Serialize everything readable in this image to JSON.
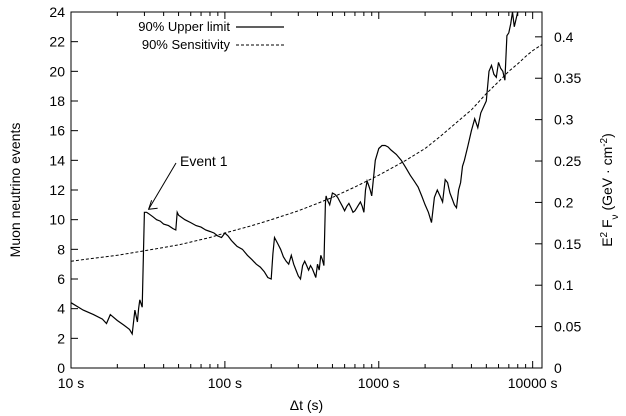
{
  "chart_data": {
    "type": "line",
    "xlabel": "Δt (s)",
    "ylabel_left": "Muon neutrino events",
    "ylabel_right": {
      "base": "E",
      "sup": "2",
      "mid": " F",
      "sub": "ν",
      "unit_open": " (GeV · cm",
      "unit_sup": "-2",
      "unit_close": ")"
    },
    "x_scale": "log",
    "xlim": [
      10,
      11500
    ],
    "ylim_left": [
      0,
      24
    ],
    "ylim_right": [
      0,
      0.43
    ],
    "x_ticks": [
      {
        "value": 10,
        "label": "10 s"
      },
      {
        "value": 100,
        "label": "100 s"
      },
      {
        "value": 1000,
        "label": "1000 s"
      },
      {
        "value": 10000,
        "label": "10000 s"
      }
    ],
    "y_ticks_left": [
      {
        "value": 0,
        "label": "0"
      },
      {
        "value": 2,
        "label": "2"
      },
      {
        "value": 4,
        "label": "4"
      },
      {
        "value": 6,
        "label": "6"
      },
      {
        "value": 8,
        "label": "8"
      },
      {
        "value": 10,
        "label": "10"
      },
      {
        "value": 12,
        "label": "12"
      },
      {
        "value": 14,
        "label": "14"
      },
      {
        "value": 16,
        "label": "16"
      },
      {
        "value": 18,
        "label": "18"
      },
      {
        "value": 20,
        "label": "20"
      },
      {
        "value": 22,
        "label": "22"
      },
      {
        "value": 24,
        "label": "24"
      }
    ],
    "y_ticks_right": [
      {
        "value": 0,
        "label": "0"
      },
      {
        "value": 0.05,
        "label": "0.05"
      },
      {
        "value": 0.1,
        "label": "0.1"
      },
      {
        "value": 0.15,
        "label": "0.15"
      },
      {
        "value": 0.2,
        "label": "0.2"
      },
      {
        "value": 0.25,
        "label": "0.25"
      },
      {
        "value": 0.3,
        "label": "0.3"
      },
      {
        "value": 0.35,
        "label": "0.35"
      },
      {
        "value": 0.4,
        "label": "0.4"
      }
    ],
    "legend_position": "top-left",
    "series": [
      {
        "name": "90% Upper limit",
        "style": "solid",
        "x": [
          10,
          12,
          14,
          16,
          17,
          18,
          20,
          22,
          24,
          25,
          26,
          27,
          27.5,
          28,
          29,
          30,
          31,
          32,
          34,
          36,
          38,
          40,
          43,
          46,
          48,
          49,
          50,
          55,
          60,
          65,
          70,
          75,
          80,
          85,
          90,
          95,
          100,
          105,
          110,
          115,
          120,
          130,
          140,
          150,
          160,
          170,
          180,
          190,
          200,
          205,
          210,
          220,
          230,
          240,
          250,
          260,
          270,
          280,
          290,
          300,
          310,
          320,
          330,
          340,
          350,
          360,
          370,
          380,
          390,
          400,
          410,
          420,
          430,
          440,
          450,
          455,
          460,
          470,
          480,
          500,
          520,
          540,
          560,
          580,
          600,
          620,
          640,
          660,
          680,
          700,
          720,
          740,
          760,
          780,
          800,
          820,
          840,
          860,
          880,
          900,
          950,
          1000,
          1050,
          1100,
          1150,
          1200,
          1300,
          1400,
          1500,
          1600,
          1700,
          1800,
          1900,
          2000,
          2100,
          2200,
          2300,
          2400,
          2500,
          2600,
          2700,
          2800,
          2900,
          3000,
          3100,
          3200,
          3300,
          3400,
          3500,
          3600,
          3800,
          4000,
          4200,
          4400,
          4600,
          4800,
          5000,
          5200,
          5400,
          5600,
          5800,
          6000,
          6200,
          6400,
          6600,
          6800,
          7000,
          7200,
          7400,
          7600,
          8000
        ],
        "y": [
          4.4,
          3.9,
          3.6,
          3.3,
          3.0,
          3.6,
          3.2,
          2.9,
          2.6,
          2.3,
          3.9,
          3.1,
          4.0,
          4.6,
          4.1,
          10.5,
          10.5,
          10.4,
          10.2,
          10.0,
          9.9,
          9.7,
          9.6,
          9.4,
          9.3,
          10.5,
          10.3,
          10.0,
          9.8,
          9.6,
          9.5,
          9.3,
          9.2,
          9.1,
          8.9,
          8.8,
          9.1,
          8.9,
          8.6,
          8.4,
          8.2,
          8.0,
          7.6,
          7.3,
          7.0,
          6.8,
          6.5,
          6.1,
          6.0,
          7.7,
          8.8,
          8.4,
          8.0,
          7.5,
          7.2,
          7.0,
          7.6,
          7.0,
          6.6,
          6.2,
          6.0,
          6.9,
          7.2,
          6.9,
          6.6,
          6.9,
          6.7,
          6.4,
          6.1,
          7.0,
          6.6,
          7.6,
          7.3,
          6.9,
          11.1,
          11.6,
          11.4,
          11.2,
          11.0,
          11.8,
          11.7,
          11.5,
          11.2,
          10.9,
          10.6,
          10.9,
          11.1,
          10.8,
          10.5,
          10.6,
          10.8,
          11.0,
          11.2,
          10.9,
          10.5,
          12.0,
          12.6,
          12.3,
          12.0,
          11.6,
          14.0,
          14.8,
          15.0,
          15.0,
          14.9,
          14.7,
          14.4,
          14.0,
          13.5,
          13.0,
          12.6,
          12.2,
          11.6,
          11.0,
          10.5,
          9.8,
          11.5,
          12.0,
          11.6,
          11.2,
          12.7,
          12.5,
          11.8,
          11.4,
          11.0,
          10.8,
          12.0,
          12.5,
          13.6,
          14.0,
          15.0,
          16.0,
          16.8,
          16.2,
          17.2,
          17.6,
          18.0,
          20.0,
          20.4,
          19.8,
          19.6,
          20.6,
          20.2,
          20.0,
          19.4,
          22.4,
          22.6,
          23.2,
          24.2,
          23.0,
          24.2
        ]
      },
      {
        "name": "90% Sensitivity",
        "style": "dashed",
        "x": [
          10,
          20,
          30,
          50,
          80,
          100,
          150,
          200,
          300,
          400,
          500,
          700,
          1000,
          1500,
          2000,
          2500,
          3000,
          4000,
          5000,
          6000,
          7000,
          8000,
          9000,
          10000,
          11500
        ],
        "y": [
          7.2,
          7.6,
          7.9,
          8.3,
          8.8,
          9.1,
          9.6,
          10.0,
          10.6,
          11.1,
          11.5,
          12.2,
          13.0,
          14.0,
          14.8,
          15.6,
          16.3,
          17.4,
          18.5,
          19.3,
          20.0,
          20.5,
          21.0,
          21.4,
          21.8
        ]
      }
    ],
    "annotations": [
      {
        "text": "Event 1",
        "x": 31,
        "y": 10.5
      }
    ]
  }
}
